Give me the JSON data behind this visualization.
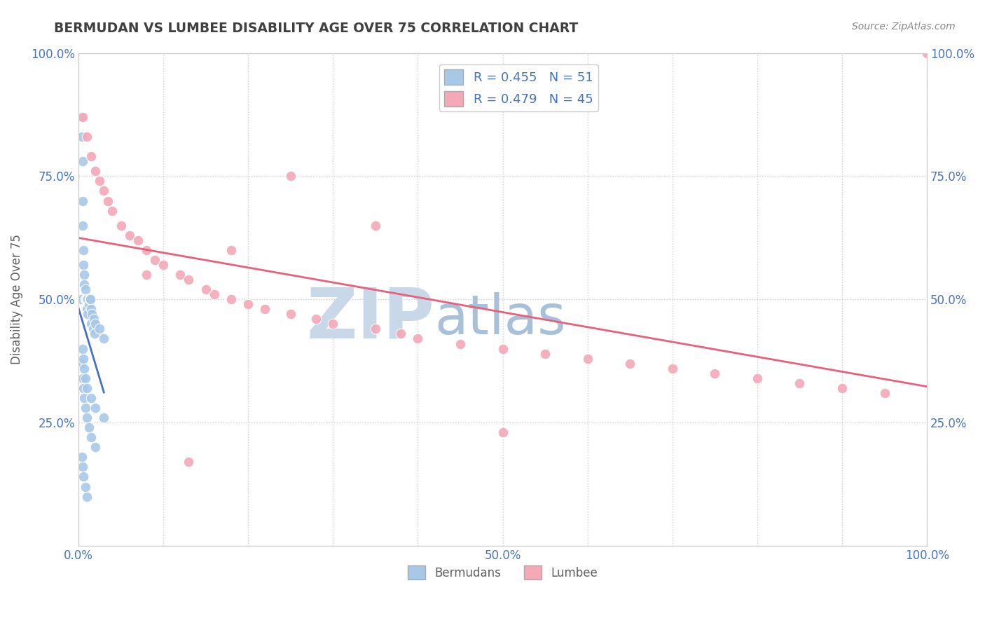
{
  "title": "BERMUDAN VS LUMBEE DISABILITY AGE OVER 75 CORRELATION CHART",
  "source": "Source: ZipAtlas.com",
  "ylabel": "Disability Age Over 75",
  "xlim": [
    0,
    100
  ],
  "ylim": [
    0,
    100
  ],
  "xticks": [
    0,
    10,
    20,
    30,
    40,
    50,
    60,
    70,
    80,
    90,
    100
  ],
  "yticks": [
    0,
    25,
    50,
    75,
    100
  ],
  "xticklabels": [
    "0.0%",
    "",
    "",
    "",
    "",
    "50.0%",
    "",
    "",
    "",
    "",
    "100.0%"
  ],
  "yticklabels_left": [
    "",
    "25.0%",
    "50.0%",
    "75.0%",
    "100.0%"
  ],
  "yticklabels_right": [
    "25.0%",
    "50.0%",
    "75.0%",
    "100.0%"
  ],
  "bermudan_R": 0.455,
  "bermudan_N": 51,
  "lumbee_R": 0.479,
  "lumbee_N": 45,
  "bermudan_color": "#a8c8e8",
  "lumbee_color": "#f4a8b8",
  "bermudan_line_color": "#4472c4",
  "lumbee_line_color": "#e8607a",
  "grid_color": "#cccccc",
  "background_color": "#ffffff",
  "title_color": "#404040",
  "label_color": "#4472c4",
  "tick_color": "#4472c4",
  "source_color": "#888888",
  "ylabel_color": "#606060",
  "watermark_zip_color": "#c8d8e8",
  "watermark_atlas_color": "#a8c0d8",
  "bermudan_x": [
    0.3,
    0.3,
    0.4,
    0.5,
    0.5,
    0.5,
    0.6,
    0.6,
    0.7,
    0.7,
    0.8,
    0.8,
    0.9,
    1.0,
    1.0,
    1.1,
    1.1,
    1.2,
    1.3,
    1.4,
    1.5,
    1.5,
    1.6,
    1.7,
    1.8,
    1.9,
    2.0,
    2.5,
    3.0,
    0.4,
    0.5,
    0.6,
    0.7,
    0.8,
    1.0,
    1.2,
    1.5,
    2.0,
    0.5,
    0.6,
    0.7,
    0.8,
    1.0,
    1.5,
    2.0,
    3.0,
    0.4,
    0.5,
    0.6,
    0.8,
    1.0
  ],
  "bermudan_y": [
    87,
    50,
    83,
    78,
    70,
    65,
    60,
    57,
    55,
    53,
    52,
    50,
    50,
    50,
    48,
    50,
    47,
    49,
    50,
    50,
    48,
    45,
    47,
    44,
    46,
    43,
    45,
    44,
    42,
    37,
    34,
    32,
    30,
    28,
    26,
    24,
    22,
    20,
    40,
    38,
    36,
    34,
    32,
    30,
    28,
    26,
    18,
    16,
    14,
    12,
    10
  ],
  "lumbee_x": [
    0.5,
    1.0,
    1.5,
    2.0,
    2.5,
    3.0,
    3.5,
    4.0,
    5.0,
    6.0,
    7.0,
    8.0,
    9.0,
    10.0,
    12.0,
    13.0,
    15.0,
    16.0,
    18.0,
    20.0,
    22.0,
    25.0,
    28.0,
    30.0,
    35.0,
    38.0,
    40.0,
    45.0,
    50.0,
    55.0,
    60.0,
    65.0,
    70.0,
    75.0,
    80.0,
    85.0,
    90.0,
    95.0,
    100.0,
    13.0,
    50.0,
    8.0,
    18.0,
    25.0,
    35.0
  ],
  "lumbee_y": [
    87,
    83,
    79,
    76,
    74,
    72,
    70,
    68,
    65,
    63,
    62,
    60,
    58,
    57,
    55,
    54,
    52,
    51,
    50,
    49,
    48,
    47,
    46,
    45,
    44,
    43,
    42,
    41,
    40,
    39,
    38,
    37,
    36,
    35,
    34,
    33,
    32,
    31,
    100,
    17,
    23,
    55,
    60,
    75,
    65
  ]
}
